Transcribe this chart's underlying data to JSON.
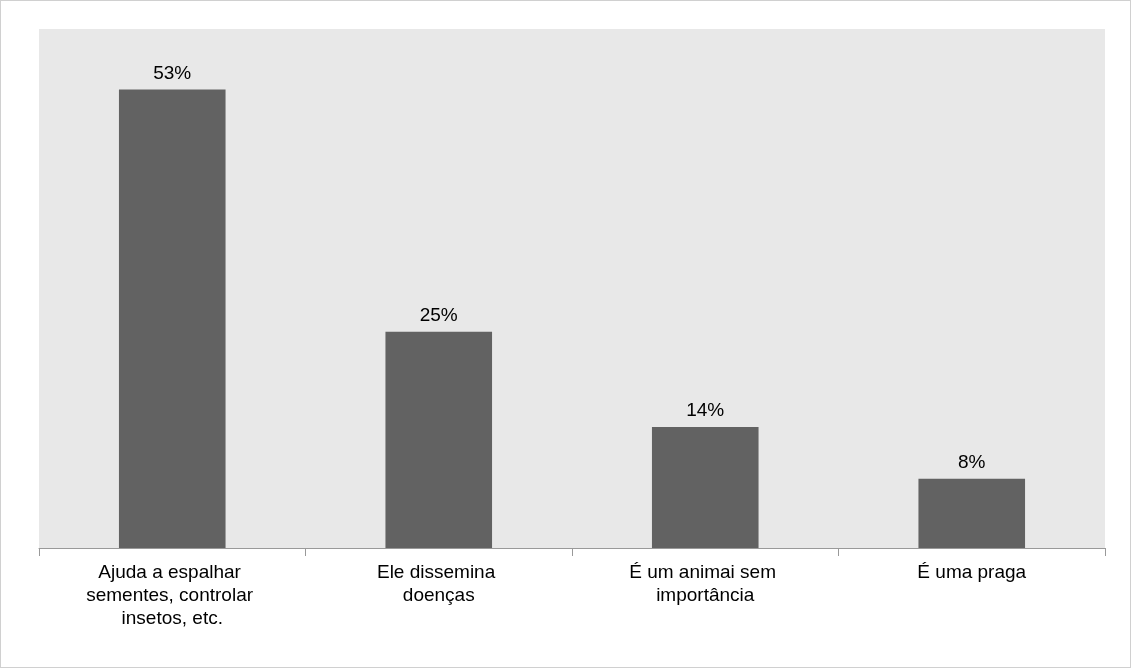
{
  "chart_data": {
    "type": "bar",
    "categories": [
      "Ajuda a espalhar sementes, controlar insetos, etc.",
      "Ele dissemina doenças",
      "É um animai sem importância",
      "É uma praga"
    ],
    "values": [
      53,
      25,
      14,
      8
    ],
    "value_labels": [
      "53%",
      "25%",
      "14%",
      "8%"
    ],
    "color": "#626262"
  }
}
